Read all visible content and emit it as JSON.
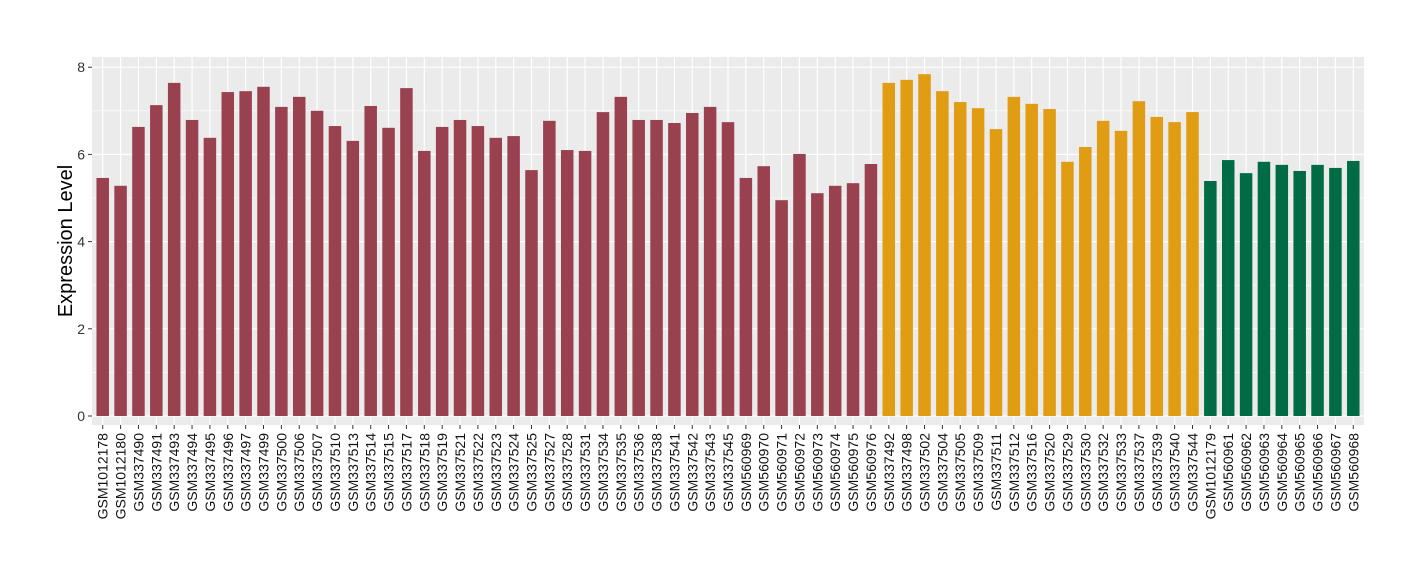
{
  "chart_data": {
    "type": "bar",
    "title": "",
    "xlabel": "",
    "ylabel": "Expression Level",
    "ylim": [
      0,
      8.2
    ],
    "yticks": [
      0,
      2,
      4,
      6,
      8
    ],
    "grid": true,
    "legend": "none",
    "colors": {
      "group1": "#9A4150",
      "group2": "#E09C12",
      "group3": "#006B45",
      "panel": "#EBEBEB",
      "grid": "#FFFFFF"
    },
    "groups": [
      {
        "color_key": "group1",
        "categories": [
          "GSM1012178",
          "GSM1012180",
          "GSM337490",
          "GSM337491",
          "GSM337493",
          "GSM337494",
          "GSM337495",
          "GSM337496",
          "GSM337497",
          "GSM337499",
          "GSM337500",
          "GSM337506",
          "GSM337507",
          "GSM337510",
          "GSM337513",
          "GSM337514",
          "GSM337515",
          "GSM337517",
          "GSM337518",
          "GSM337519",
          "GSM337521",
          "GSM337522",
          "GSM337523",
          "GSM337524",
          "GSM337525",
          "GSM337527",
          "GSM337528",
          "GSM337531",
          "GSM337534",
          "GSM337535",
          "GSM337536",
          "GSM337538",
          "GSM337541",
          "GSM337542",
          "GSM337543",
          "GSM337545",
          "GSM560969",
          "GSM560970",
          "GSM560971",
          "GSM560972",
          "GSM560973",
          "GSM560974",
          "GSM560975",
          "GSM560976"
        ],
        "values": [
          5.46,
          5.28,
          6.63,
          7.13,
          7.64,
          6.79,
          6.38,
          7.43,
          7.45,
          7.55,
          7.09,
          7.32,
          7.0,
          6.65,
          6.31,
          7.11,
          6.61,
          7.52,
          6.08,
          6.63,
          6.79,
          6.65,
          6.38,
          6.42,
          5.64,
          6.77,
          6.1,
          6.08,
          6.97,
          7.32,
          6.79,
          6.79,
          6.72,
          6.95,
          7.09,
          6.74,
          5.46,
          5.73,
          4.95,
          6.01,
          5.11,
          5.28,
          5.34,
          5.78
        ]
      },
      {
        "color_key": "group2",
        "categories": [
          "GSM337492",
          "GSM337498",
          "GSM337502",
          "GSM337504",
          "GSM337505",
          "GSM337509",
          "GSM337511",
          "GSM337512",
          "GSM337516",
          "GSM337520",
          "GSM337529",
          "GSM337530",
          "GSM337532",
          "GSM337533",
          "GSM337537",
          "GSM337539",
          "GSM337540",
          "GSM337544"
        ],
        "values": [
          7.64,
          7.71,
          7.84,
          7.45,
          7.2,
          7.06,
          6.58,
          7.32,
          7.16,
          7.04,
          5.83,
          6.17,
          6.77,
          6.54,
          7.22,
          6.86,
          6.74,
          6.97
        ]
      },
      {
        "color_key": "group3",
        "categories": [
          "GSM1012179",
          "GSM560961",
          "GSM560962",
          "GSM560963",
          "GSM560964",
          "GSM560965",
          "GSM560966",
          "GSM560967",
          "GSM560968"
        ],
        "values": [
          5.39,
          5.87,
          5.57,
          5.83,
          5.76,
          5.62,
          5.76,
          5.69,
          5.85
        ]
      }
    ]
  }
}
